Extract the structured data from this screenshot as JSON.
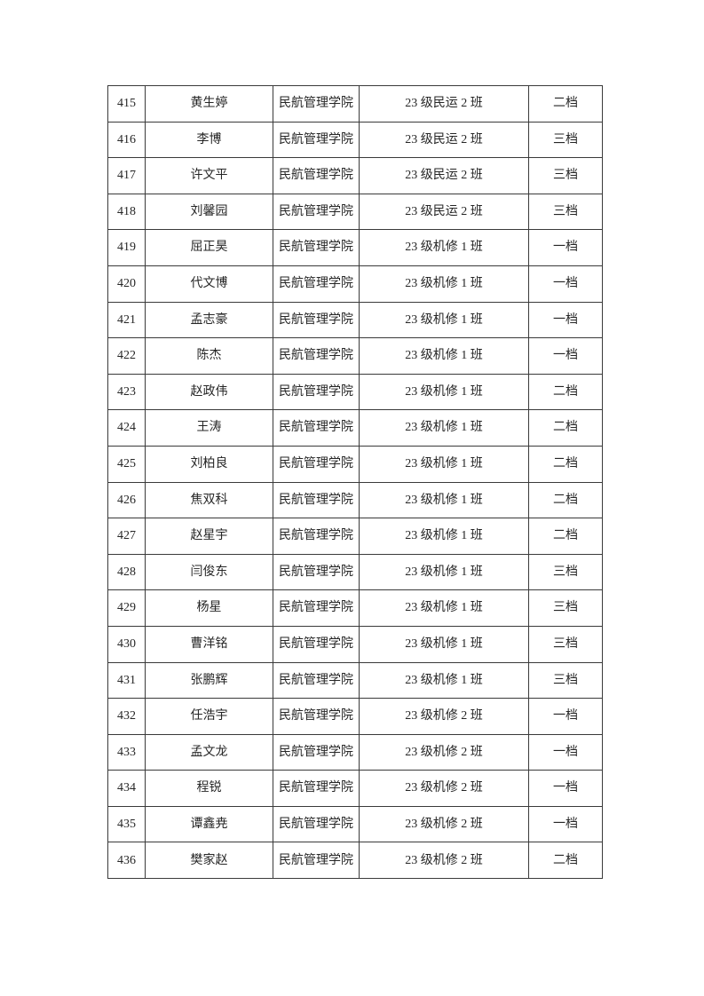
{
  "page": {
    "background_color": "#ffffff",
    "text_color": "#262626",
    "border_color": "#3a3a3a"
  },
  "table": {
    "columns": [
      {
        "key": "number"
      },
      {
        "key": "name"
      },
      {
        "key": "college"
      },
      {
        "key": "class"
      },
      {
        "key": "tier"
      }
    ],
    "rows": [
      {
        "number": "415",
        "name": "黄生婷",
        "college": "民航管理学院",
        "class": "23 级民运 2 班",
        "tier": "二档"
      },
      {
        "number": "416",
        "name": "李博",
        "college": "民航管理学院",
        "class": "23 级民运 2 班",
        "tier": "三档"
      },
      {
        "number": "417",
        "name": "许文平",
        "college": "民航管理学院",
        "class": "23 级民运 2 班",
        "tier": "三档"
      },
      {
        "number": "418",
        "name": "刘馨园",
        "college": "民航管理学院",
        "class": "23 级民运 2 班",
        "tier": "三档"
      },
      {
        "number": "419",
        "name": "屈正昊",
        "college": "民航管理学院",
        "class": "23 级机修 1 班",
        "tier": "一档"
      },
      {
        "number": "420",
        "name": "代文博",
        "college": "民航管理学院",
        "class": "23 级机修 1 班",
        "tier": "一档"
      },
      {
        "number": "421",
        "name": "孟志豪",
        "college": "民航管理学院",
        "class": "23 级机修 1 班",
        "tier": "一档"
      },
      {
        "number": "422",
        "name": "陈杰",
        "college": "民航管理学院",
        "class": "23 级机修 1 班",
        "tier": "一档"
      },
      {
        "number": "423",
        "name": "赵政伟",
        "college": "民航管理学院",
        "class": "23 级机修 1 班",
        "tier": "二档"
      },
      {
        "number": "424",
        "name": "王涛",
        "college": "民航管理学院",
        "class": "23 级机修 1 班",
        "tier": "二档"
      },
      {
        "number": "425",
        "name": "刘柏良",
        "college": "民航管理学院",
        "class": "23 级机修 1 班",
        "tier": "二档"
      },
      {
        "number": "426",
        "name": "焦双科",
        "college": "民航管理学院",
        "class": "23 级机修 1 班",
        "tier": "二档"
      },
      {
        "number": "427",
        "name": "赵星宇",
        "college": "民航管理学院",
        "class": "23 级机修 1 班",
        "tier": "二档"
      },
      {
        "number": "428",
        "name": "闫俊东",
        "college": "民航管理学院",
        "class": "23 级机修 1 班",
        "tier": "三档"
      },
      {
        "number": "429",
        "name": "杨星",
        "college": "民航管理学院",
        "class": "23 级机修 1 班",
        "tier": "三档"
      },
      {
        "number": "430",
        "name": "曹洋铭",
        "college": "民航管理学院",
        "class": "23 级机修 1 班",
        "tier": "三档"
      },
      {
        "number": "431",
        "name": "张鹏辉",
        "college": "民航管理学院",
        "class": "23 级机修 1 班",
        "tier": "三档"
      },
      {
        "number": "432",
        "name": "任浩宇",
        "college": "民航管理学院",
        "class": "23 级机修 2 班",
        "tier": "一档"
      },
      {
        "number": "433",
        "name": "孟文龙",
        "college": "民航管理学院",
        "class": "23 级机修 2 班",
        "tier": "一档"
      },
      {
        "number": "434",
        "name": "程锐",
        "college": "民航管理学院",
        "class": "23 级机修 2 班",
        "tier": "一档"
      },
      {
        "number": "435",
        "name": "谭鑫尭",
        "college": "民航管理学院",
        "class": "23 级机修 2 班",
        "tier": "一档"
      },
      {
        "number": "436",
        "name": "樊家赵",
        "college": "民航管理学院",
        "class": "23 级机修 2 班",
        "tier": "二档"
      }
    ]
  }
}
